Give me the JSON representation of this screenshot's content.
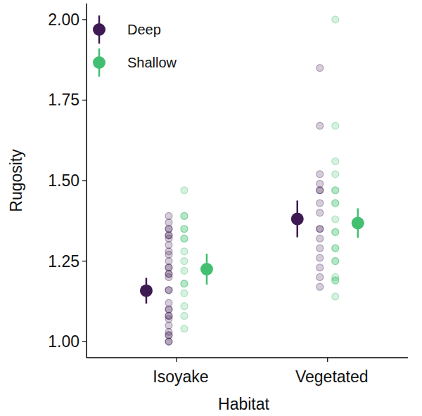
{
  "chart_data": {
    "type": "dot",
    "x_label": "Habitat",
    "y_label": "Rugosity",
    "categories": [
      "Isoyake",
      "Vegetated"
    ],
    "ylim": [
      0.95,
      2.05
    ],
    "yticks": [
      {
        "value": 1,
        "label": "1.00"
      },
      {
        "value": 1.25,
        "label": "1.25"
      },
      {
        "value": 1.5,
        "label": "1.50"
      },
      {
        "value": 1.75,
        "label": "1.75"
      },
      {
        "value": 2,
        "label": "2.00"
      }
    ],
    "legend": "top-left",
    "grid": false,
    "series": [
      {
        "name": "Deep",
        "color": "#3e1a52",
        "values": [
          1.158,
          1.381
        ],
        "error": [
          0.04,
          0.057
        ],
        "observations": [
          [
            1.0,
            1.0,
            1.02,
            1.02,
            1.03,
            1.05,
            1.07,
            1.08,
            1.08,
            1.1,
            1.1,
            1.12,
            1.16,
            1.16,
            1.2,
            1.21,
            1.21,
            1.23,
            1.23,
            1.25,
            1.27,
            1.28,
            1.3,
            1.32,
            1.33,
            1.33,
            1.35,
            1.35,
            1.37,
            1.39
          ],
          [
            1.17,
            1.2,
            1.23,
            1.26,
            1.29,
            1.32,
            1.35,
            1.35,
            1.4,
            1.43,
            1.47,
            1.47,
            1.49,
            1.52,
            1.67,
            1.85
          ]
        ]
      },
      {
        "name": "Shallow",
        "color": "#43bf71",
        "values": [
          1.225,
          1.368
        ],
        "error": [
          0.048,
          0.046
        ],
        "observations": [
          [
            1.04,
            1.08,
            1.11,
            1.15,
            1.18,
            1.18,
            1.22,
            1.25,
            1.28,
            1.32,
            1.32,
            1.35,
            1.35,
            1.39,
            1.39,
            1.47
          ],
          [
            1.14,
            1.19,
            1.19,
            1.2,
            1.25,
            1.25,
            1.29,
            1.29,
            1.34,
            1.34,
            1.38,
            1.43,
            1.43,
            1.47,
            1.47,
            1.52,
            1.56,
            1.67,
            2.0
          ]
        ]
      }
    ]
  }
}
